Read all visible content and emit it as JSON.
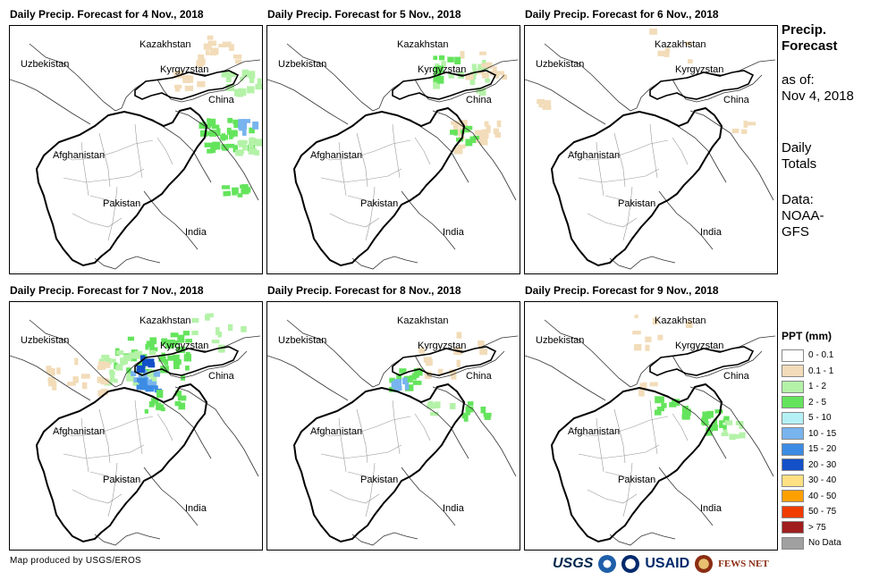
{
  "panels": [
    {
      "title": "Daily Precip. Forecast for 4 Nov., 2018"
    },
    {
      "title": "Daily Precip. Forecast for 5 Nov., 2018"
    },
    {
      "title": "Daily Precip. Forecast for 6 Nov., 2018"
    },
    {
      "title": "Daily Precip. Forecast for 7 Nov., 2018"
    },
    {
      "title": "Daily Precip. Forecast for 8 Nov., 2018"
    },
    {
      "title": "Daily Precip. Forecast for 9 Nov., 2018"
    }
  ],
  "map_labels": {
    "kazakhstan": "Kazakhstan",
    "uzbekistan": "Uzbekistan",
    "kyrgyzstan": "Kyrgyzstan",
    "china": "China",
    "afghanistan": "Afghanistan",
    "pakistan": "Pakistan",
    "india": "India"
  },
  "side": {
    "heading_line1": "Precip.",
    "heading_line2": "Forecast",
    "asof_line1": "as of:",
    "asof_line2": "Nov 4, 2018",
    "daily_line1": "Daily",
    "daily_line2": "Totals",
    "data_line1": "Data:",
    "data_line2": "NOAA-",
    "data_line3": "GFS"
  },
  "legend": {
    "title": "PPT (mm)",
    "items": [
      {
        "label": "0 - 0.1",
        "color": "#ffffff"
      },
      {
        "label": "0.1 - 1",
        "color": "#f2dcb9"
      },
      {
        "label": "1 - 2",
        "color": "#b4f2a8"
      },
      {
        "label": "2 - 5",
        "color": "#64e45c"
      },
      {
        "label": "5 - 10",
        "color": "#b4f0f5"
      },
      {
        "label": "10 - 15",
        "color": "#78b4ee"
      },
      {
        "label": "15 - 20",
        "color": "#3c8ce4"
      },
      {
        "label": "20 - 30",
        "color": "#1450c8"
      },
      {
        "label": "30 - 40",
        "color": "#ffe083"
      },
      {
        "label": "40 - 50",
        "color": "#ffa000"
      },
      {
        "label": "50 - 75",
        "color": "#f03c00"
      },
      {
        "label": "> 75",
        "color": "#a01e1e"
      },
      {
        "label": "No Data",
        "color": "#a0a0a0"
      }
    ]
  },
  "credit": "Map produced by USGS/EROS",
  "logos": {
    "usgs": "USGS",
    "usaid": "USAID",
    "fews": "FEWS NET"
  }
}
